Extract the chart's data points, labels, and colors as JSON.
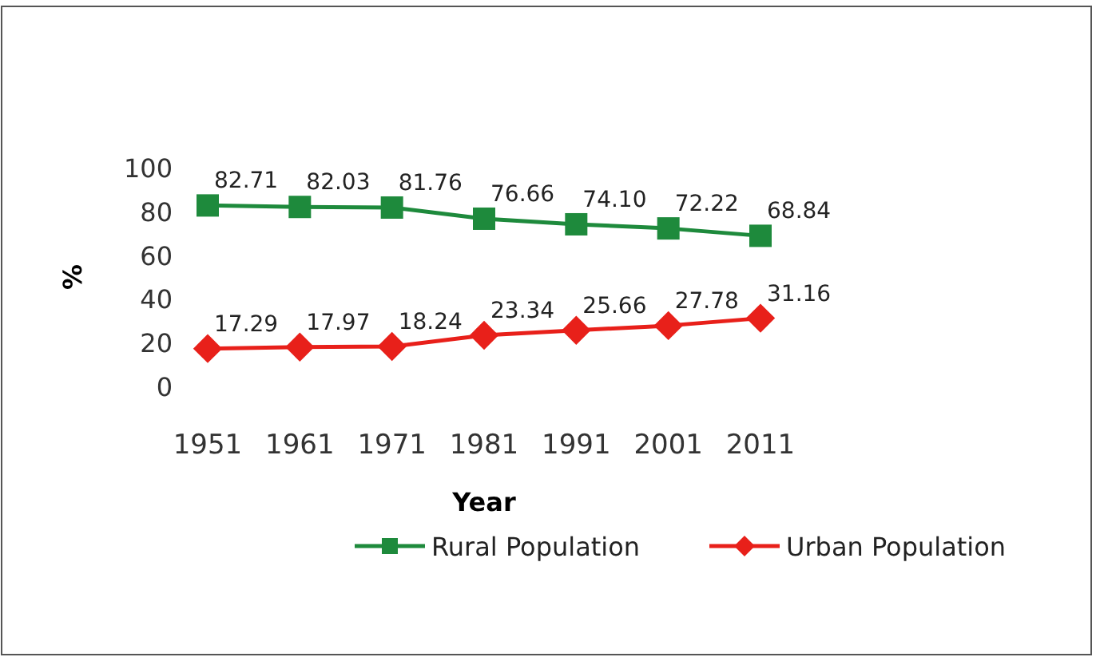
{
  "chart_data": {
    "type": "line",
    "xlabel": "Year",
    "ylabel": "%",
    "categories": [
      "1951",
      "1961",
      "1971",
      "1981",
      "1991",
      "2001",
      "2011"
    ],
    "series": [
      {
        "name": "Rural Population",
        "color": "#1e8a3c",
        "marker": "square",
        "values": [
          82.71,
          82.03,
          81.76,
          76.66,
          74.1,
          72.22,
          68.84
        ],
        "value_labels": [
          "82.71",
          "82.03",
          "81.76",
          "76.66",
          "74.10",
          "72.22",
          "68.84"
        ]
      },
      {
        "name": "Urban Population",
        "color": "#e8201a",
        "marker": "diamond",
        "values": [
          17.29,
          17.97,
          18.24,
          23.34,
          25.66,
          27.78,
          31.16
        ],
        "value_labels": [
          "17.29",
          "17.97",
          "18.24",
          "23.34",
          "25.66",
          "27.78",
          "31.16"
        ]
      }
    ],
    "ylim": [
      0,
      100
    ],
    "yticks": [
      0,
      20,
      40,
      60,
      80,
      100
    ],
    "legend": "bottom right",
    "grid": false
  }
}
